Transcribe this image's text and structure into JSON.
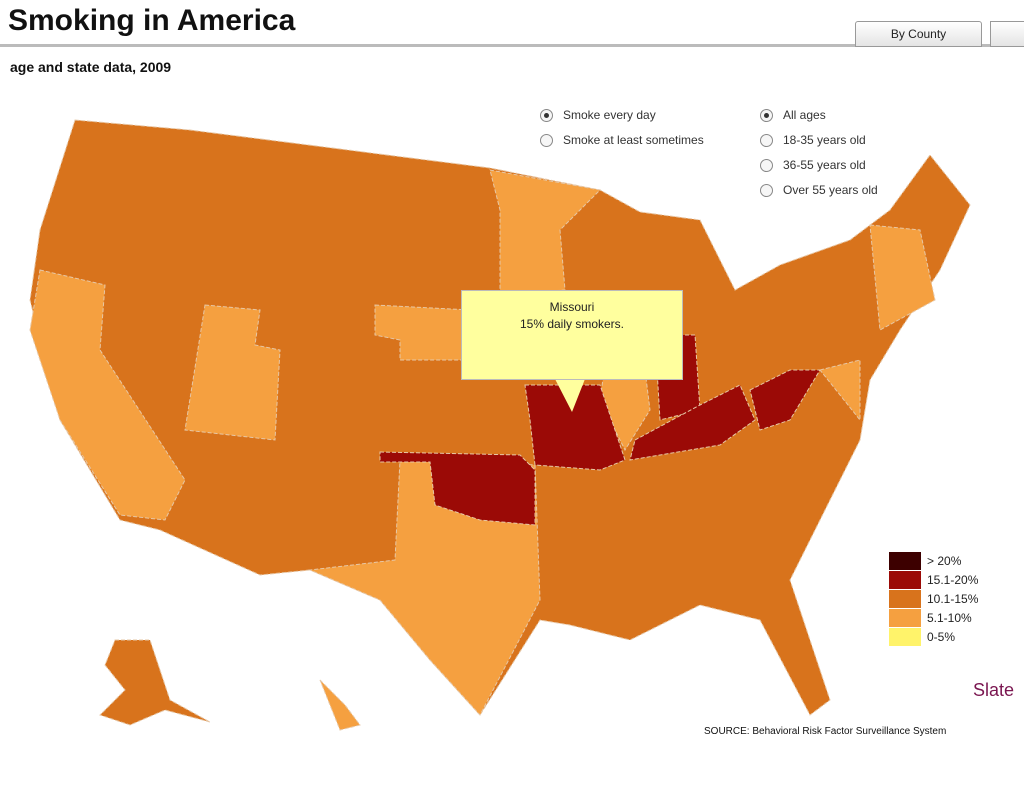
{
  "header": {
    "title": "Smoking in America",
    "button": "By County",
    "subtitle": "age and state data, 2009"
  },
  "filters": {
    "frequency": {
      "options": [
        "Smoke every day",
        "Smoke at least sometimes"
      ],
      "selected": 0
    },
    "age": {
      "options": [
        "All ages",
        "18-35 years old",
        "36-55 years old",
        "Over 55 years old"
      ],
      "selected": 0
    }
  },
  "tooltip": {
    "state": "Missouri",
    "text": "15% daily smokers."
  },
  "legend": [
    {
      "label": "> 20%",
      "color": "#3d0000"
    },
    {
      "label": "15.1-20%",
      "color": "#9b0a06"
    },
    {
      "label": "10.1-15%",
      "color": "#d8731c"
    },
    {
      "label": "5.1-10%",
      "color": "#f5a040"
    },
    {
      "label": "0-5%",
      "color": "#fff36a"
    }
  ],
  "brand": "Slate",
  "source": "SOURCE: Behavioral Risk Factor Surveillance System"
}
